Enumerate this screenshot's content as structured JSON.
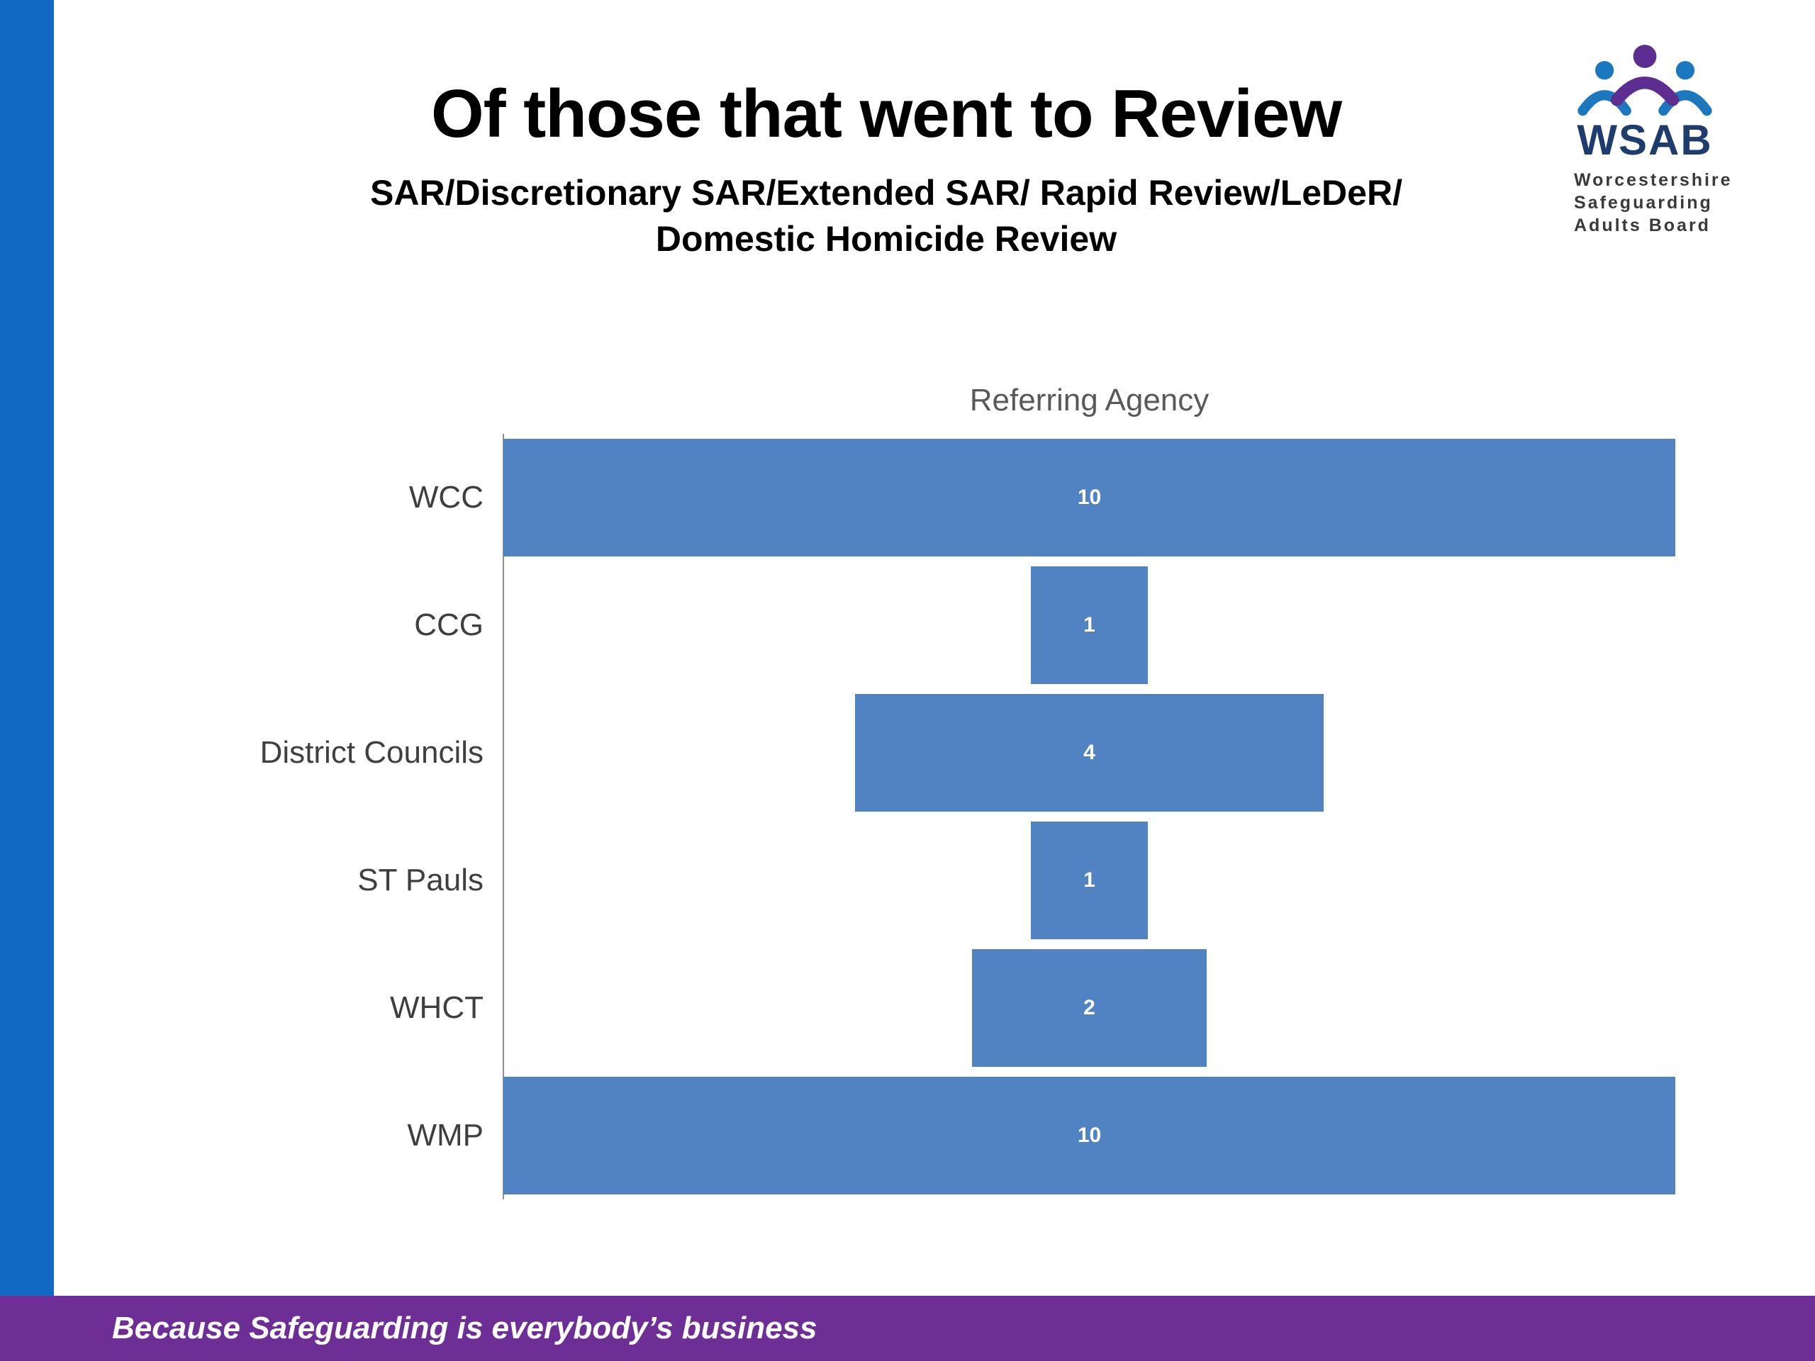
{
  "slide": {
    "title": "Of those that went to Review",
    "subtitle_line1": "SAR/Discretionary SAR/Extended SAR/ Rapid Review/LeDeR/",
    "subtitle_line2": "Domestic Homicide Review",
    "footer": "Because Safeguarding is everybody’s business"
  },
  "logo": {
    "acronym": "WSAB",
    "org_line1": "Worcestershire",
    "org_line2": "Safeguarding",
    "org_line3": "Adults Board"
  },
  "chart_data": {
    "type": "bar",
    "orientation": "horizontal",
    "alignment": "centered",
    "title": "Referring Agency",
    "categories": [
      "WCC",
      "CCG",
      "District Councils",
      "ST Pauls",
      "WHCT",
      "WMP"
    ],
    "values": [
      10,
      1,
      4,
      1,
      2,
      10
    ],
    "xlim": [
      0,
      10
    ],
    "grid": false,
    "legend": "none",
    "bar_color": "#5183c3",
    "value_label_color": "#ffffff"
  },
  "colors": {
    "stripe_blue": "#1169c3",
    "footer_purple": "#6d2f96",
    "bar_blue": "#5183c3",
    "logo_navy": "#1e3c6e",
    "logo_purple": "#5d2d91",
    "logo_blue": "#1b78be"
  }
}
